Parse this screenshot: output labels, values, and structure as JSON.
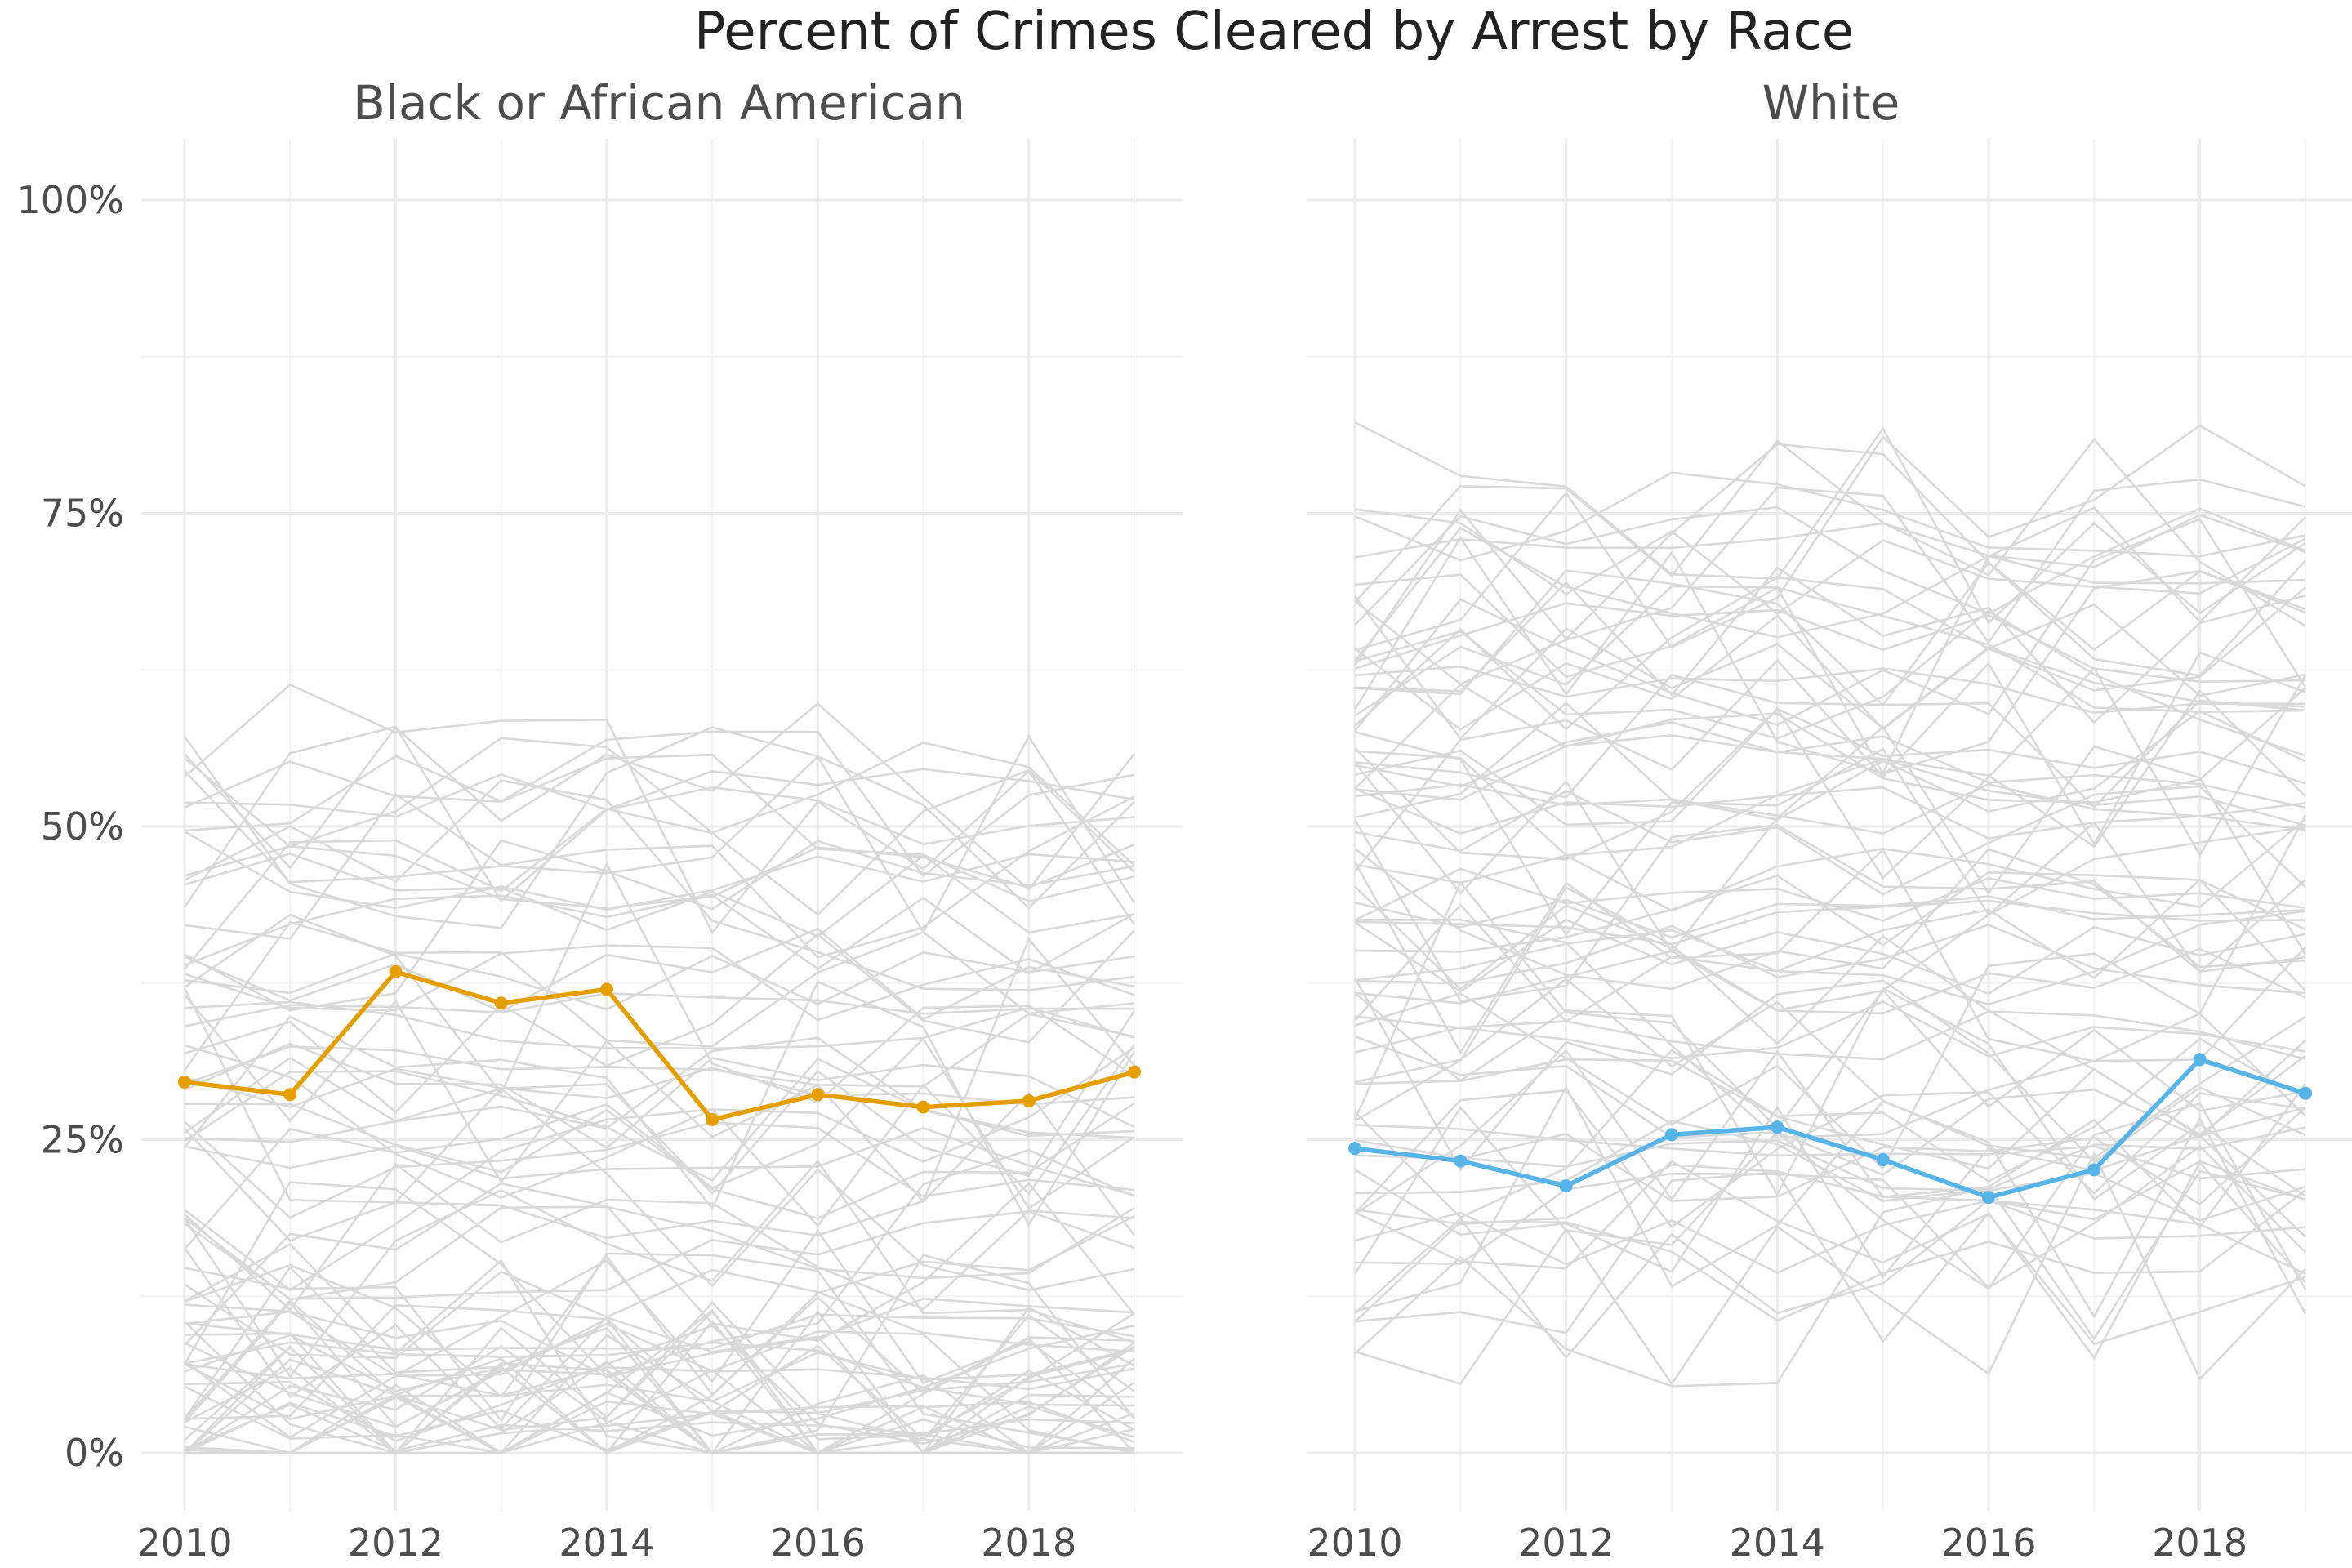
{
  "chart_data": {
    "type": "line",
    "title": "Percent of Crimes Cleared by Arrest by Race",
    "x_ticks": [
      "2010",
      "2012",
      "2014",
      "2016",
      "2018"
    ],
    "y_ticks": [
      "0%",
      "25%",
      "50%",
      "75%",
      "100%"
    ],
    "xlim": [
      2010,
      2019
    ],
    "ylim": [
      0,
      100
    ],
    "grid": true,
    "panels": [
      {
        "name": "Black or African American",
        "highlight_color": "#E69F00",
        "x": [
          2010,
          2011,
          2012,
          2013,
          2014,
          2015,
          2016,
          2017,
          2018,
          2019
        ],
        "highlight_values": [
          29.6,
          28.6,
          38.4,
          35.9,
          37.0,
          26.6,
          28.6,
          27.6,
          28.1,
          30.4
        ],
        "background_series_count": 80,
        "background_range": [
          0,
          64
        ]
      },
      {
        "name": "White",
        "highlight_color": "#56B4E9",
        "x": [
          2010,
          2011,
          2012,
          2013,
          2014,
          2015,
          2016,
          2017,
          2018,
          2019
        ],
        "highlight_values": [
          24.3,
          23.3,
          21.3,
          25.4,
          26.0,
          23.4,
          20.4,
          22.6,
          31.4,
          28.7
        ],
        "background_series_count": 80,
        "background_range": [
          5,
          83
        ]
      }
    ]
  }
}
